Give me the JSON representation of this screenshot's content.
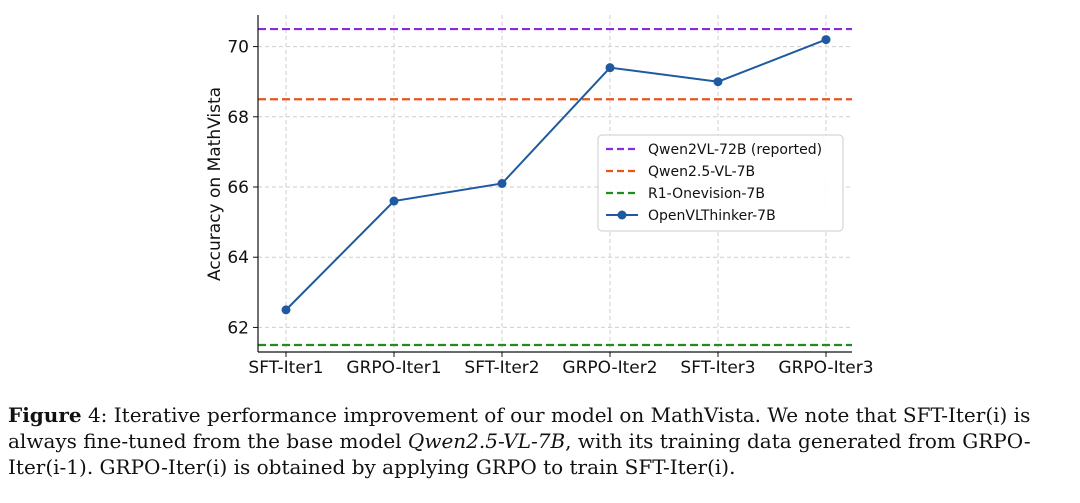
{
  "chart_data": {
    "type": "line",
    "title": "",
    "xlabel": "",
    "ylabel": "Accuracy on MathVista",
    "categories": [
      "SFT-Iter1",
      "GRPO-Iter1",
      "SFT-Iter2",
      "GRPO-Iter2",
      "SFT-Iter3",
      "GRPO-Iter3"
    ],
    "ylim": [
      61.3,
      70.9
    ],
    "yticks": [
      62,
      64,
      66,
      68,
      70
    ],
    "grid": true,
    "legend_position": "center-right",
    "series": [
      {
        "name": "OpenVLThinker-7B",
        "kind": "line",
        "color": "#1f5aa0",
        "values": [
          62.5,
          65.6,
          66.1,
          69.4,
          69.0,
          70.2
        ]
      }
    ],
    "reference_lines": [
      {
        "name": "Qwen2VL-72B (reported)",
        "value": 70.5,
        "color": "#8a2be2",
        "style": "dashed"
      },
      {
        "name": "Qwen2.5-VL-7B",
        "value": 68.5,
        "color": "#e8551a",
        "style": "dashed"
      },
      {
        "name": "R1-Onevision-7B",
        "value": 61.5,
        "color": "#1e8c1e",
        "style": "dashed"
      }
    ],
    "legend_order": [
      "Qwen2VL-72B (reported)",
      "Qwen2.5-VL-7B",
      "R1-Onevision-7B",
      "OpenVLThinker-7B"
    ]
  },
  "caption": {
    "label": "Figure",
    "number": "4:",
    "part1": "Iterative performance improvement of our model on MathVista. We note that SFT-Iter(i) is always fine-tuned from the base model",
    "model": "Qwen2.5-VL-7B",
    "part2": ", with its training data generated from GRPO-Iter(i-1). GRPO-Iter(i) is obtained by applying GRPO to train SFT-Iter(i)."
  }
}
